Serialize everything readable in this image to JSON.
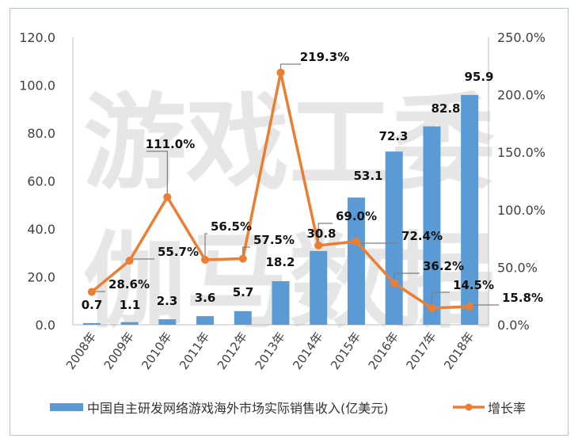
{
  "chart_data": {
    "type": "bar+line",
    "categories": [
      "2008年",
      "2009年",
      "2010年",
      "2011年",
      "2012年",
      "2013年",
      "2014年",
      "2015年",
      "2016年",
      "2017年",
      "2018年"
    ],
    "series": [
      {
        "name": "中国自主研发网络游戏海外市场实际销售收入(亿美元)",
        "type": "bar",
        "axis": "left",
        "color": "#5b9bd5",
        "values": [
          0.7,
          1.1,
          2.3,
          3.6,
          5.7,
          18.2,
          30.8,
          53.1,
          72.3,
          82.8,
          95.9
        ],
        "labels": [
          "0.7",
          "1.1",
          "2.3",
          "3.6",
          "5.7",
          "18.2",
          "30.8",
          "53.1",
          "72.3",
          "82.8",
          "95.9"
        ]
      },
      {
        "name": "增长率",
        "type": "line",
        "axis": "right",
        "color": "#ed7d31",
        "values": [
          28.6,
          55.7,
          111.0,
          56.5,
          57.5,
          219.3,
          69.0,
          72.4,
          36.2,
          14.5,
          15.8
        ],
        "labels": [
          "28.6%",
          "55.7%",
          "111.0%",
          "56.5%",
          "57.5%",
          "219.3%",
          "69.0%",
          "72.4%",
          "36.2%",
          "14.5%",
          "15.8%"
        ]
      }
    ],
    "left_axis": {
      "ylim": [
        0,
        120
      ],
      "ticks": [
        "0.0",
        "20.0",
        "40.0",
        "60.0",
        "80.0",
        "100.0",
        "120.0"
      ]
    },
    "right_axis": {
      "ylim": [
        0,
        250
      ],
      "ticks": [
        "0.0%",
        "50.0%",
        "100.0%",
        "150.0%",
        "200.0%",
        "250.0%"
      ]
    },
    "grid": false,
    "legend": "bottom"
  },
  "watermark": [
    "游戏工委",
    "伽马数据"
  ]
}
